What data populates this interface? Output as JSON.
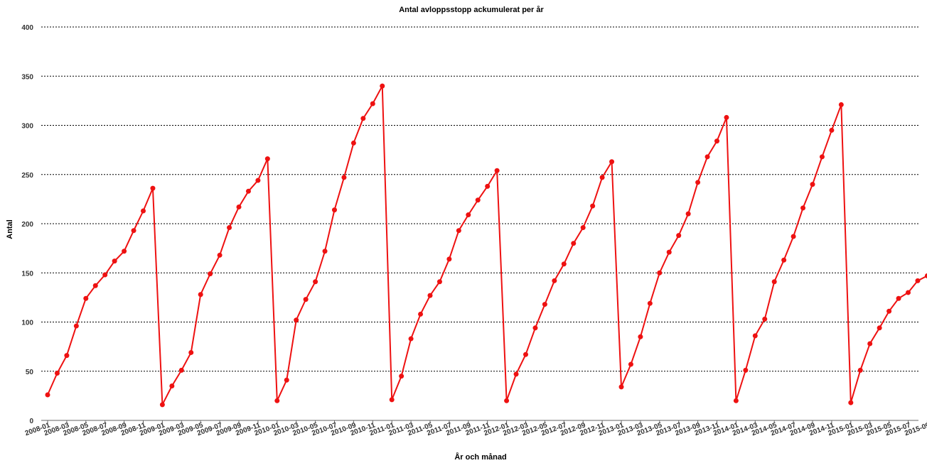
{
  "chart_data": {
    "type": "line",
    "title": "Antal avloppsstopp ackumulerat per år",
    "xlabel": "År och månad",
    "ylabel": "Antal",
    "ylim": [
      0,
      400
    ],
    "yticks": [
      0,
      50,
      100,
      150,
      200,
      250,
      300,
      350,
      400
    ],
    "grid": true,
    "color": "#ee1111",
    "x": [
      "2008-01",
      "2008-02",
      "2008-03",
      "2008-04",
      "2008-05",
      "2008-06",
      "2008-07",
      "2008-08",
      "2008-09",
      "2008-10",
      "2008-11",
      "2008-12",
      "2009-01",
      "2009-02",
      "2009-03",
      "2009-04",
      "2009-05",
      "2009-06",
      "2009-07",
      "2009-08",
      "2009-09",
      "2009-10",
      "2009-11",
      "2009-12",
      "2010-01",
      "2010-02",
      "2010-03",
      "2010-04",
      "2010-05",
      "2010-06",
      "2010-07",
      "2010-08",
      "2010-09",
      "2010-10",
      "2010-11",
      "2010-12",
      "2011-01",
      "2011-02",
      "2011-03",
      "2011-04",
      "2011-05",
      "2011-06",
      "2011-07",
      "2011-08",
      "2011-09",
      "2011-10",
      "2011-11",
      "2011-12",
      "2012-01",
      "2012-02",
      "2012-03",
      "2012-04",
      "2012-05",
      "2012-06",
      "2012-07",
      "2012-08",
      "2012-09",
      "2012-10",
      "2012-11",
      "2012-12",
      "2013-01",
      "2013-02",
      "2013-03",
      "2013-04",
      "2013-05",
      "2013-06",
      "2013-07",
      "2013-08",
      "2013-09",
      "2013-10",
      "2013-11",
      "2013-12",
      "2014-01",
      "2014-02",
      "2014-03",
      "2014-04",
      "2014-05",
      "2014-06",
      "2014-07",
      "2014-08",
      "2014-09",
      "2014-10",
      "2014-11",
      "2014-12",
      "2015-01",
      "2015-02",
      "2015-03",
      "2015-04",
      "2015-05",
      "2015-06",
      "2015-07",
      "2015-08",
      "2015-09"
    ],
    "xtick_labels": [
      "2008-01",
      "2008-03",
      "2008-05",
      "2008-07",
      "2008-09",
      "2008-11",
      "2009-01",
      "2009-03",
      "2009-05",
      "2009-07",
      "2009-09",
      "2009-11",
      "2010-01",
      "2010-03",
      "2010-05",
      "2010-07",
      "2010-09",
      "2010-11",
      "2011-01",
      "2011-03",
      "2011-05",
      "2011-07",
      "2011-09",
      "2011-11",
      "2012-01",
      "2012-03",
      "2012-05",
      "2012-07",
      "2012-09",
      "2012-11",
      "2013-01",
      "2013-03",
      "2013-05",
      "2013-07",
      "2013-09",
      "2013-11",
      "2014-01",
      "2014-03",
      "2014-05",
      "2014-07",
      "2014-09",
      "2014-11",
      "2015-01",
      "2015-03",
      "2015-05",
      "2015-07",
      "2015-09"
    ],
    "series": [
      {
        "values": [
          26,
          48,
          66,
          96,
          124,
          137,
          148,
          162,
          172,
          193,
          213,
          236,
          16,
          35,
          51,
          69,
          128,
          149,
          168,
          196,
          217,
          233,
          244,
          266,
          20,
          41,
          102,
          123,
          141,
          172,
          214,
          247,
          282,
          307,
          322,
          340,
          21,
          45,
          83,
          108,
          127,
          141,
          164,
          193,
          209,
          224,
          238,
          254,
          20,
          47,
          67,
          94,
          118,
          142,
          159,
          180,
          196,
          218,
          247,
          263,
          34,
          57,
          85,
          119,
          150,
          171,
          188,
          210,
          242,
          268,
          284,
          308,
          20,
          51,
          86,
          103,
          141,
          163,
          187,
          216,
          240,
          268,
          295,
          321,
          18,
          51,
          78,
          94,
          111,
          124,
          130,
          142,
          147
        ]
      }
    ]
  }
}
